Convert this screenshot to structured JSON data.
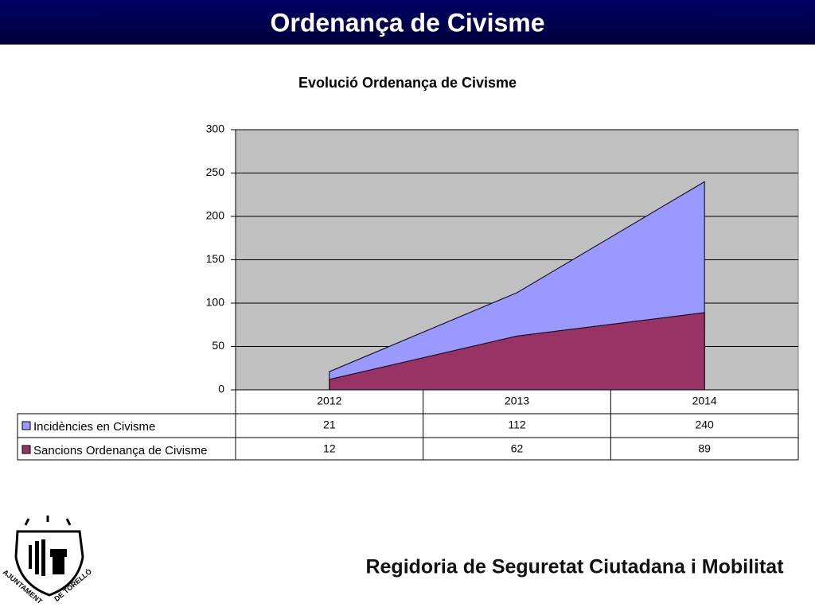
{
  "slide_title": "Ordenança de Civisme",
  "footer": "Regidoria de Seguretat Ciutadana i Mobilitat",
  "logo_text": [
    "AJUNTAMENT",
    "DE TORELLÓ"
  ],
  "chart_data": {
    "type": "area",
    "title": "Evolució Ordenança de Civisme",
    "categories": [
      "2012",
      "2013",
      "2014"
    ],
    "series": [
      {
        "name": "Incidències en Civisme",
        "color": "#9999ff",
        "values": [
          21,
          112,
          240
        ]
      },
      {
        "name": "Sancions Ordenança de Civisme",
        "color": "#993366",
        "values": [
          12,
          62,
          89
        ]
      }
    ],
    "ylim": [
      0,
      300
    ],
    "yticks": [
      0,
      50,
      100,
      150,
      200,
      250,
      300
    ],
    "grid": true
  }
}
